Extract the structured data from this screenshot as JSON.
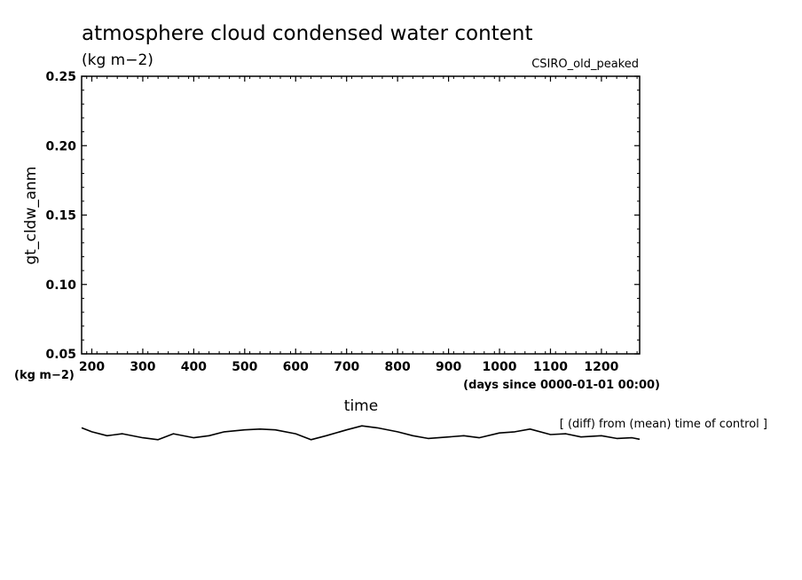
{
  "chart_data": {
    "type": "line",
    "title": "atmosphere cloud condensed water content",
    "units": "(kg m−2)",
    "model_label": "CSIRO_old_peaked",
    "ylabel": "gt_cldw_anm",
    "y_units": "(kg m−2)",
    "xlabel": "time",
    "x_units": "(days since 0000-01-01 00:00)",
    "ylim": [
      0.05,
      0.25
    ],
    "xlim": [
      180,
      1275
    ],
    "y_ticks": [
      "0.05",
      "0.10",
      "0.15",
      "0.20",
      "0.25"
    ],
    "x_ticks": [
      "200",
      "300",
      "400",
      "500",
      "600",
      "700",
      "800",
      "900",
      "1000",
      "1100",
      "1200"
    ],
    "grid": false,
    "note": "[ (diff) from (mean) time of control ]",
    "series": [
      {
        "color": "#000000",
        "x": [
          180,
          200,
          230,
          260,
          300,
          330,
          360,
          400,
          430,
          460,
          500,
          530,
          560,
          600,
          630,
          660,
          700,
          730,
          760,
          800,
          830,
          860,
          900,
          930,
          960,
          1000,
          1030,
          1060,
          1100,
          1130,
          1160,
          1200,
          1230,
          1260,
          1275
        ],
        "y": [
          -0.0165,
          -0.0175,
          -0.0185,
          -0.018,
          -0.019,
          -0.0195,
          -0.018,
          -0.019,
          -0.0185,
          -0.0175,
          -0.017,
          -0.0168,
          -0.017,
          -0.018,
          -0.0195,
          -0.0185,
          -0.017,
          -0.016,
          -0.0165,
          -0.0175,
          -0.0185,
          -0.0192,
          -0.0188,
          -0.0185,
          -0.019,
          -0.0178,
          -0.0175,
          -0.0168,
          -0.0182,
          -0.018,
          -0.0188,
          -0.0185,
          -0.0192,
          -0.019,
          -0.0194
        ]
      }
    ]
  }
}
